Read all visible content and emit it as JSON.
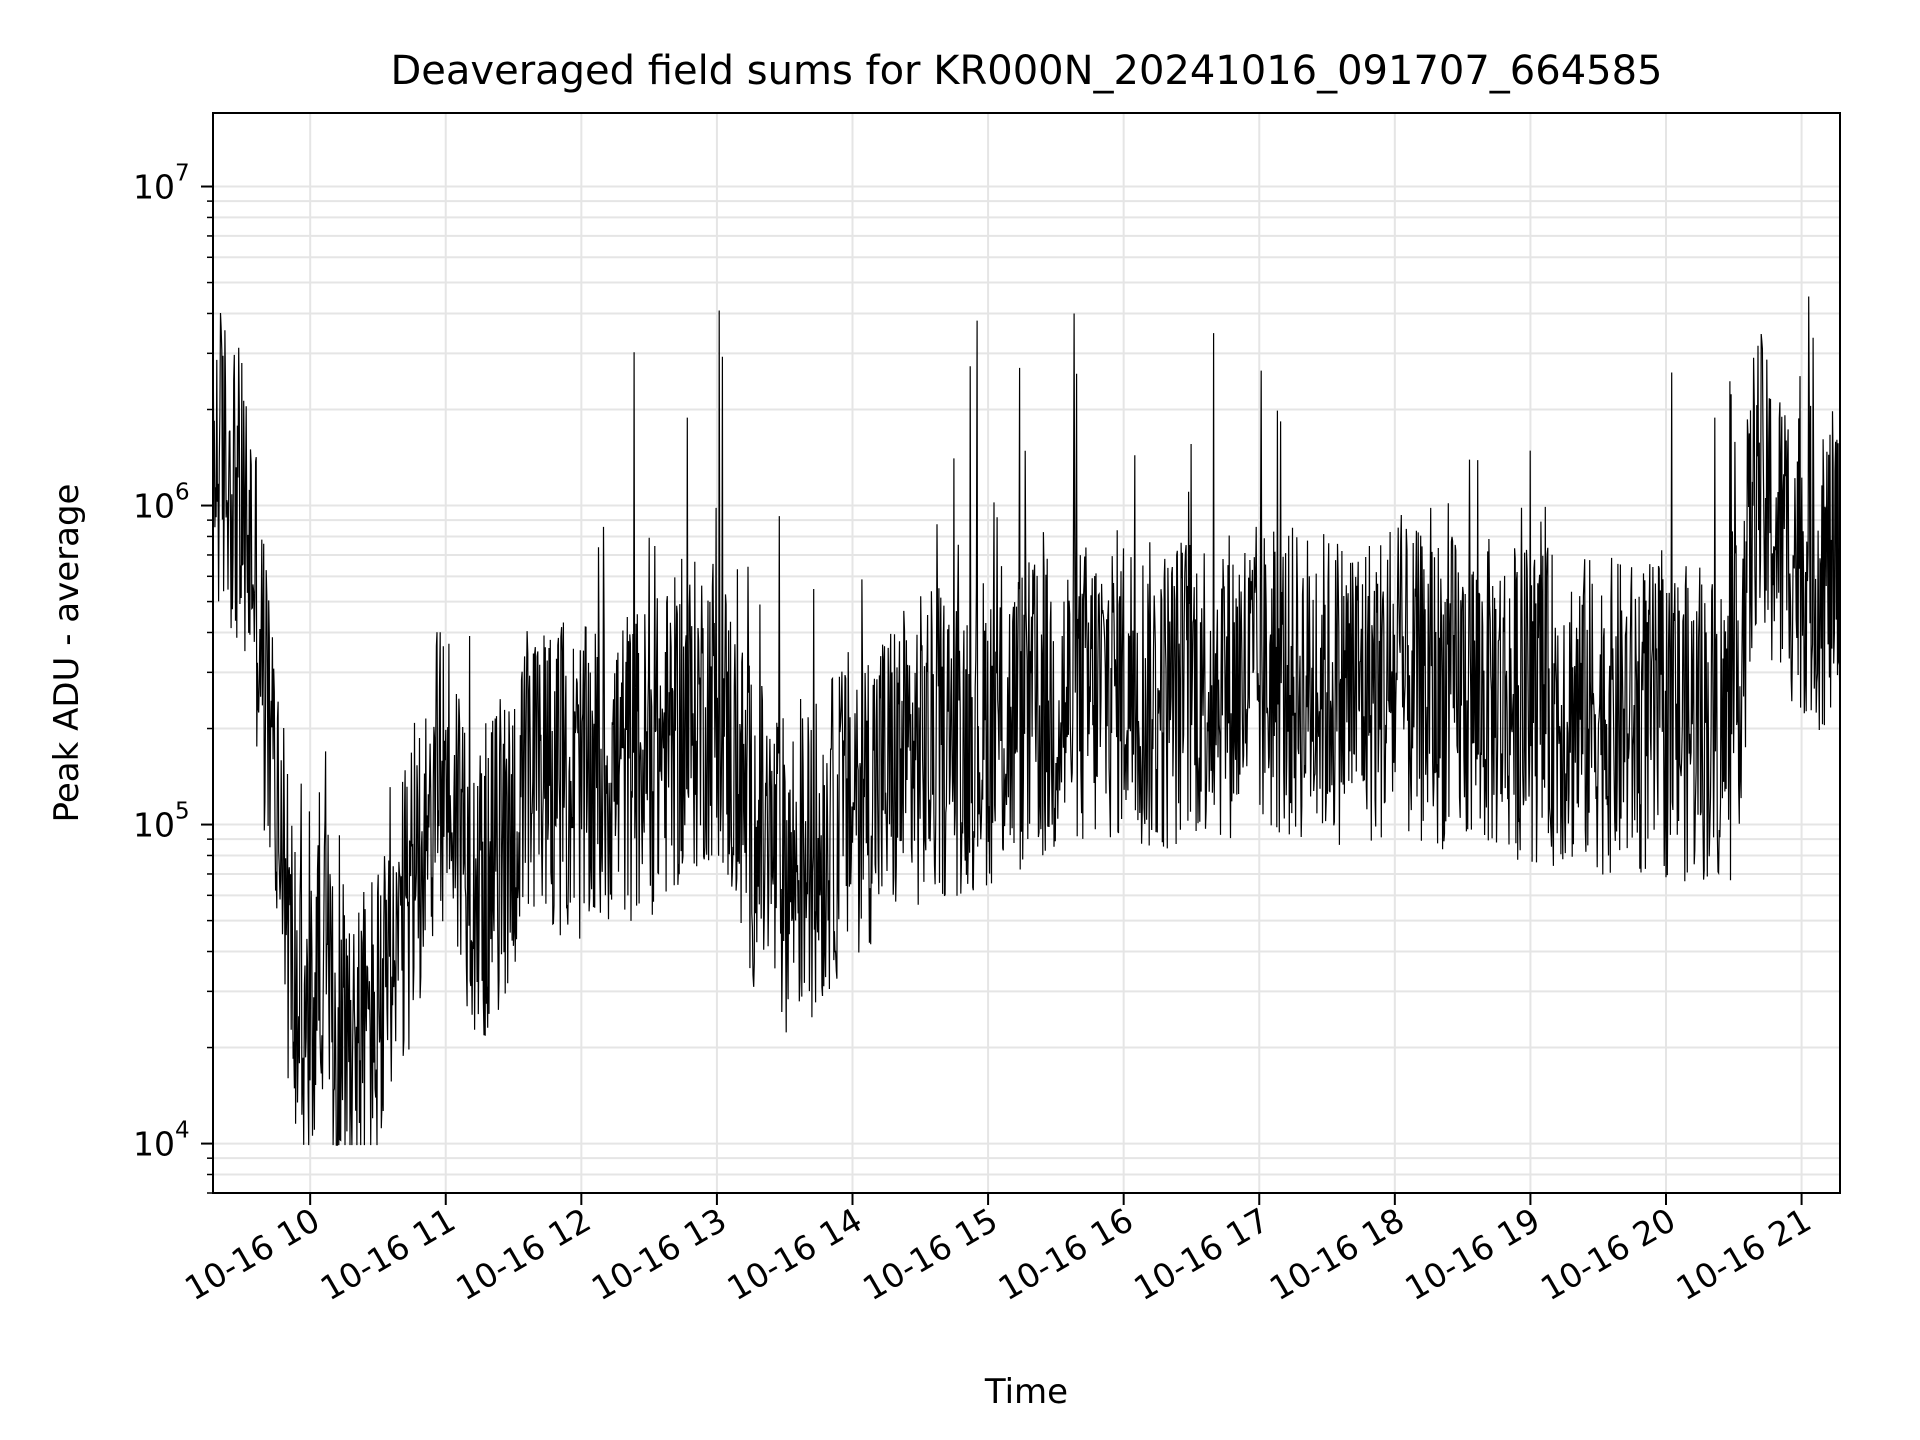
{
  "chart_data": {
    "type": "line",
    "title": "Deaveraged field sums for KR000N_20241016_091707_664585",
    "xlabel": "Time",
    "ylabel": "Peak ADU - average",
    "y_scale": "log",
    "ylim": [
      7000,
      17000000
    ],
    "xlim": [
      "10-16 09:17",
      "10-16 21:17"
    ],
    "grid": true,
    "line_color": "#000000",
    "grid_color": "#e5e5e5",
    "x_ticks": [
      {
        "value": "10-16 10:00",
        "label": "10-16 10"
      },
      {
        "value": "10-16 11:00",
        "label": "10-16 11"
      },
      {
        "value": "10-16 12:00",
        "label": "10-16 12"
      },
      {
        "value": "10-16 13:00",
        "label": "10-16 13"
      },
      {
        "value": "10-16 14:00",
        "label": "10-16 14"
      },
      {
        "value": "10-16 15:00",
        "label": "10-16 15"
      },
      {
        "value": "10-16 16:00",
        "label": "10-16 16"
      },
      {
        "value": "10-16 17:00",
        "label": "10-16 17"
      },
      {
        "value": "10-16 18:00",
        "label": "10-16 18"
      },
      {
        "value": "10-16 19:00",
        "label": "10-16 19"
      },
      {
        "value": "10-16 20:00",
        "label": "10-16 20"
      },
      {
        "value": "10-16 21:00",
        "label": "10-16 21"
      }
    ],
    "y_ticks": [
      {
        "value": 10000,
        "base": "10",
        "exp": "4"
      },
      {
        "value": 100000,
        "base": "10",
        "exp": "5"
      },
      {
        "value": 1000000,
        "base": "10",
        "exp": "6"
      },
      {
        "value": 10000000,
        "base": "10",
        "exp": "7"
      }
    ],
    "series": [
      {
        "x": [
          "10-16 09:17",
          "10-16 09:20",
          "10-16 09:25",
          "10-16 09:30",
          "10-16 09:35",
          "10-16 09:40",
          "10-16 09:45",
          "10-16 09:50",
          "10-16 09:55",
          "10-16 10:00",
          "10-16 10:05",
          "10-16 10:10",
          "10-16 10:15",
          "10-16 10:20",
          "10-16 10:25",
          "10-16 10:30",
          "10-16 10:35",
          "10-16 10:40",
          "10-16 10:50",
          "10-16 11:00",
          "10-16 11:15",
          "10-16 11:30",
          "10-16 11:45",
          "10-16 12:00",
          "10-16 12:15",
          "10-16 12:30",
          "10-16 12:45",
          "10-16 13:00",
          "10-16 13:15",
          "10-16 13:30",
          "10-16 13:45",
          "10-16 14:00",
          "10-16 14:30",
          "10-16 15:00",
          "10-16 15:30",
          "10-16 16:00",
          "10-16 16:15",
          "10-16 16:30",
          "10-16 17:00",
          "10-16 17:30",
          "10-16 18:00",
          "10-16 18:30",
          "10-16 19:00",
          "10-16 19:30",
          "10-16 20:00",
          "10-16 20:30",
          "10-16 20:35",
          "10-16 20:40",
          "10-16 20:45",
          "10-16 20:50",
          "10-16 21:00",
          "10-16 21:10",
          "10-16 21:17"
        ],
        "y": [
          1500000,
          1400000,
          1300000,
          900000,
          700000,
          250000,
          130000,
          50000,
          25000,
          20000,
          50000,
          22000,
          25000,
          20000,
          22000,
          25000,
          28000,
          40000,
          100000,
          150000,
          60000,
          100000,
          150000,
          130000,
          150000,
          160000,
          200000,
          250000,
          100000,
          70000,
          80000,
          120000,
          170000,
          200000,
          230000,
          280000,
          240000,
          280000,
          280000,
          270000,
          270000,
          260000,
          240000,
          220000,
          210000,
          200000,
          500000,
          1300000,
          900000,
          800000,
          700000,
          600000,
          650000
        ]
      }
    ]
  }
}
